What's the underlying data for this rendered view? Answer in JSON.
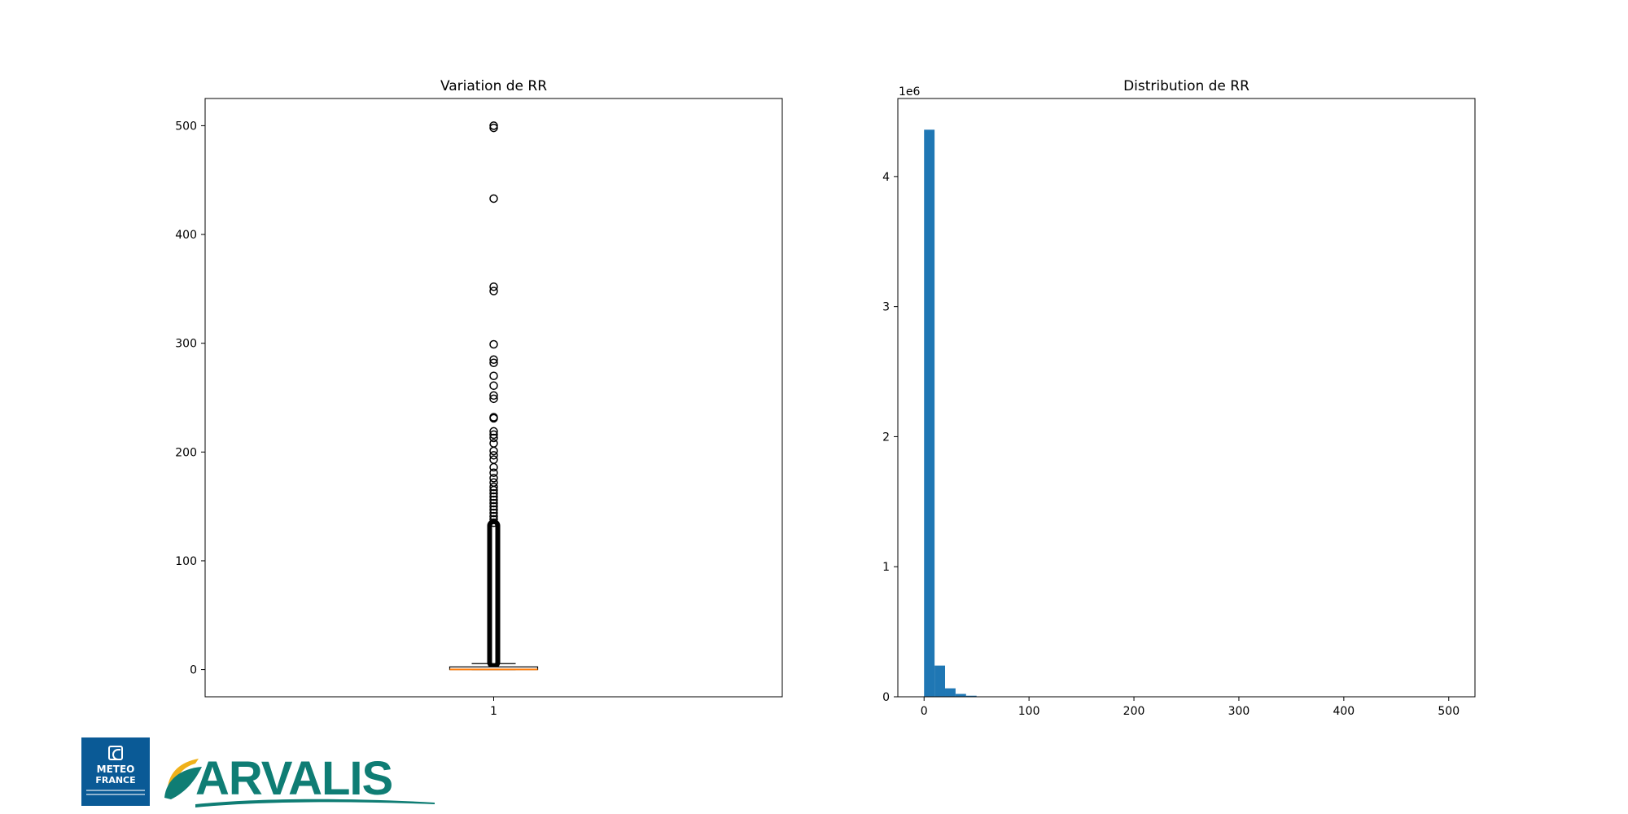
{
  "chart_data": [
    {
      "type": "box",
      "title": "Variation de RR",
      "xlabel": "",
      "ylabel": "",
      "categories": [
        "1"
      ],
      "ylim": [
        -25,
        525
      ],
      "yticks": [
        0,
        100,
        200,
        300,
        400,
        500
      ],
      "grid": false,
      "box": {
        "q1": 0,
        "median": 0.2,
        "q3": 2.5,
        "whisker_low": 0,
        "whisker_high": 5.5
      },
      "outliers": [
        500,
        498,
        433,
        352,
        348,
        299,
        285,
        282,
        270,
        261,
        252,
        249,
        232,
        231,
        219,
        216,
        213,
        208,
        201,
        197,
        193,
        186,
        181,
        176,
        172,
        168,
        165,
        162,
        159,
        156,
        153,
        150,
        147,
        144,
        141,
        138,
        135
      ],
      "outlier_band": [
        6,
        133
      ]
    },
    {
      "type": "bar",
      "subtype": "histogram",
      "title": "Distribution de RR",
      "xlabel": "",
      "ylabel": "",
      "offset_label": "1e6",
      "xlim": [
        -25,
        525
      ],
      "ylim": [
        0,
        4.6
      ],
      "xticks": [
        0,
        100,
        200,
        300,
        400,
        500
      ],
      "yticks": [
        0,
        1,
        2,
        3,
        4
      ],
      "bin_width": 10,
      "bin_start": 0,
      "values": [
        4.36,
        0.24,
        0.065,
        0.022,
        0.008,
        0.003,
        0.001,
        0,
        0,
        0,
        0,
        0,
        0,
        0,
        0,
        0,
        0,
        0,
        0,
        0,
        0,
        0,
        0,
        0,
        0,
        0,
        0,
        0,
        0,
        0,
        0,
        0,
        0,
        0,
        0,
        0,
        0,
        0,
        0,
        0,
        0,
        0,
        0,
        0,
        0,
        0,
        0,
        0,
        0,
        0
      ],
      "bar_color": "#1f77b4",
      "grid": false
    }
  ],
  "logos": {
    "meteo_line1": "METEO",
    "meteo_line2": "FRANCE",
    "meteo_color": "#0a5a96",
    "arvalis_text": "ARVALIS",
    "arvalis_color": "#0f7d74",
    "arvalis_accent": "#f0b11a"
  }
}
